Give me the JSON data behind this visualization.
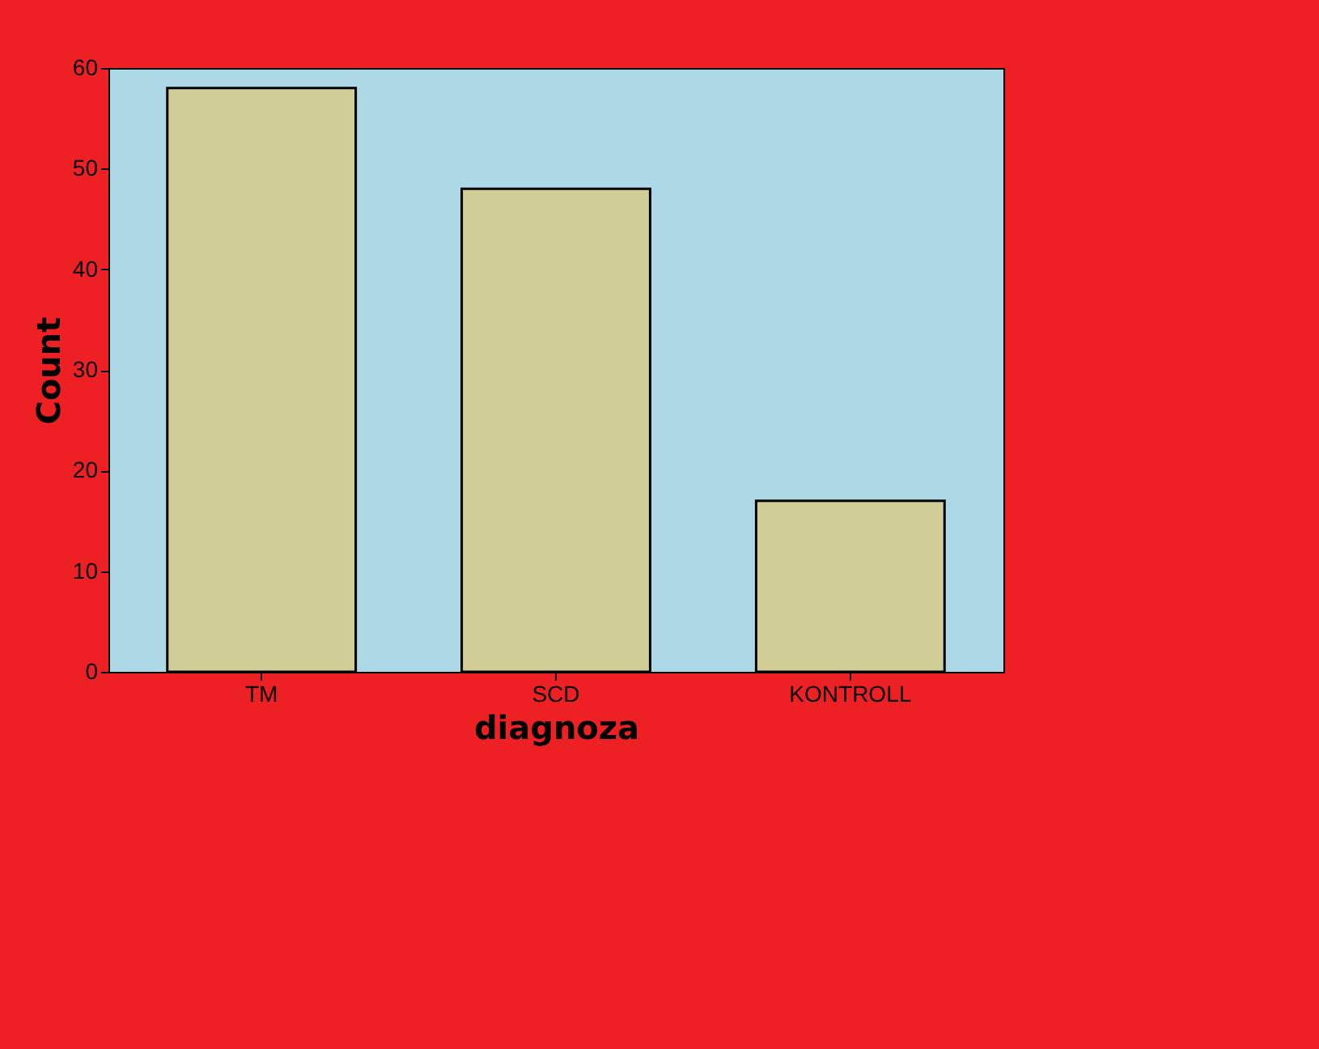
{
  "chart_data": {
    "type": "bar",
    "xlabel": "diagnoza",
    "ylabel": "Count",
    "categories": [
      "TM",
      "SCD",
      "KONTROLL"
    ],
    "values": [
      58,
      48,
      17
    ],
    "color": "#d0cd96",
    "ylim": [
      0,
      60
    ],
    "yticks": [
      0,
      10,
      20,
      30,
      40,
      50,
      60
    ],
    "grid": false
  }
}
